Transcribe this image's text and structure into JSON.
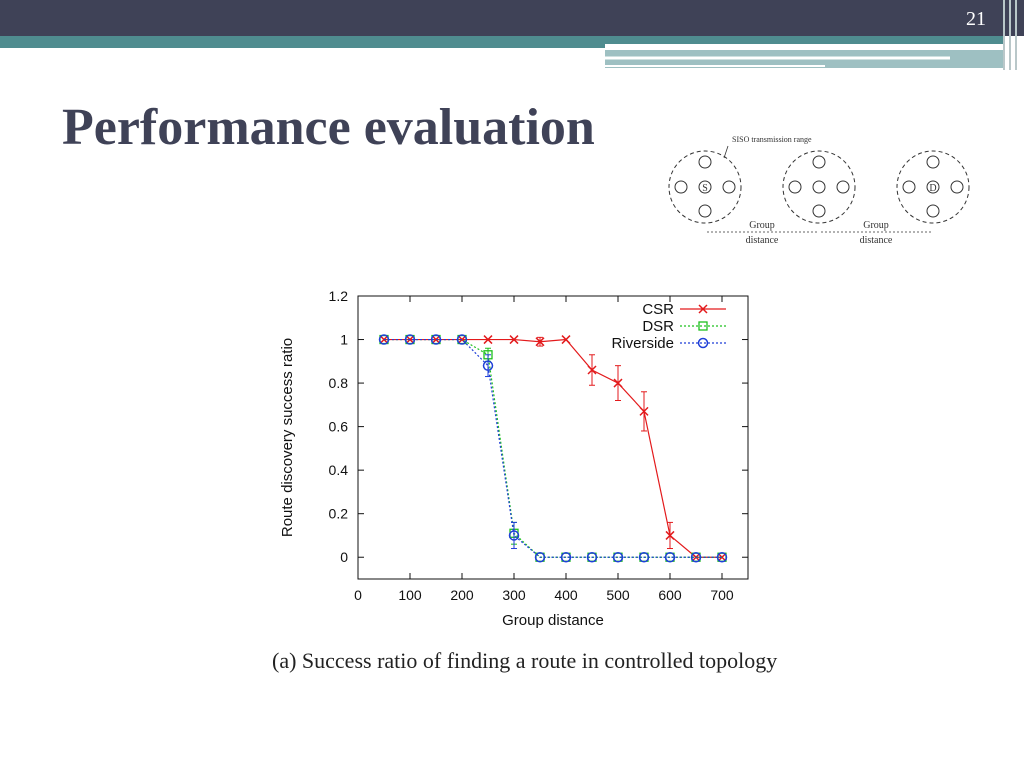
{
  "slide": {
    "number": "21",
    "title": "Performance evaluation",
    "caption": "(a) Success ratio of finding a route in controlled topology",
    "colors": {
      "header_dark": "#3f4257",
      "header_teal": "#4f8c8f",
      "title": "#3f4257"
    }
  },
  "topology": {
    "range_label": "SISO transmission range",
    "source_label": "S",
    "destination_label": "D",
    "distance_label_1": [
      "Group",
      "distance"
    ],
    "distance_label_2": [
      "Group",
      "distance"
    ]
  },
  "chart_data": {
    "type": "line",
    "title": "",
    "xlabel": "Group distance",
    "ylabel": "Route discovery success ratio",
    "xlim": [
      0,
      750
    ],
    "ylim": [
      -0.1,
      1.2
    ],
    "xticks": [
      0,
      100,
      200,
      300,
      400,
      500,
      600,
      700
    ],
    "yticks": [
      0,
      0.2,
      0.4,
      0.6,
      0.8,
      1,
      1.2
    ],
    "x": [
      50,
      100,
      150,
      200,
      250,
      300,
      350,
      400,
      450,
      500,
      550,
      600,
      650,
      700
    ],
    "grid": false,
    "legend": "top-right",
    "series": [
      {
        "name": "CSR",
        "color": "#e31a1c",
        "marker": "x",
        "dash": "",
        "values": [
          1,
          1,
          1,
          1,
          1,
          1,
          0.99,
          1,
          0.86,
          0.8,
          0.67,
          0.1,
          0,
          0
        ],
        "errors": [
          0,
          0,
          0,
          0,
          0,
          0,
          0.02,
          0,
          0.07,
          0.08,
          0.09,
          0.06,
          0,
          0
        ]
      },
      {
        "name": "DSR",
        "color": "#1ec01e",
        "marker": "square",
        "dash": "2,2",
        "values": [
          1,
          1,
          1,
          1,
          0.93,
          0.11,
          0,
          0,
          0,
          0,
          0,
          0,
          0,
          0
        ],
        "errors": [
          0,
          0,
          0,
          0,
          0.03,
          0.05,
          0,
          0,
          0,
          0,
          0,
          0,
          0,
          0
        ]
      },
      {
        "name": "Riverside",
        "color": "#1f3fd8",
        "marker": "circle",
        "dash": "2,2",
        "values": [
          1,
          1,
          1,
          1,
          0.88,
          0.1,
          0,
          0,
          0,
          0,
          0,
          0,
          0,
          0
        ],
        "errors": [
          0,
          0,
          0,
          0,
          0.05,
          0.06,
          0,
          0,
          0,
          0,
          0,
          0,
          0,
          0
        ]
      }
    ]
  }
}
